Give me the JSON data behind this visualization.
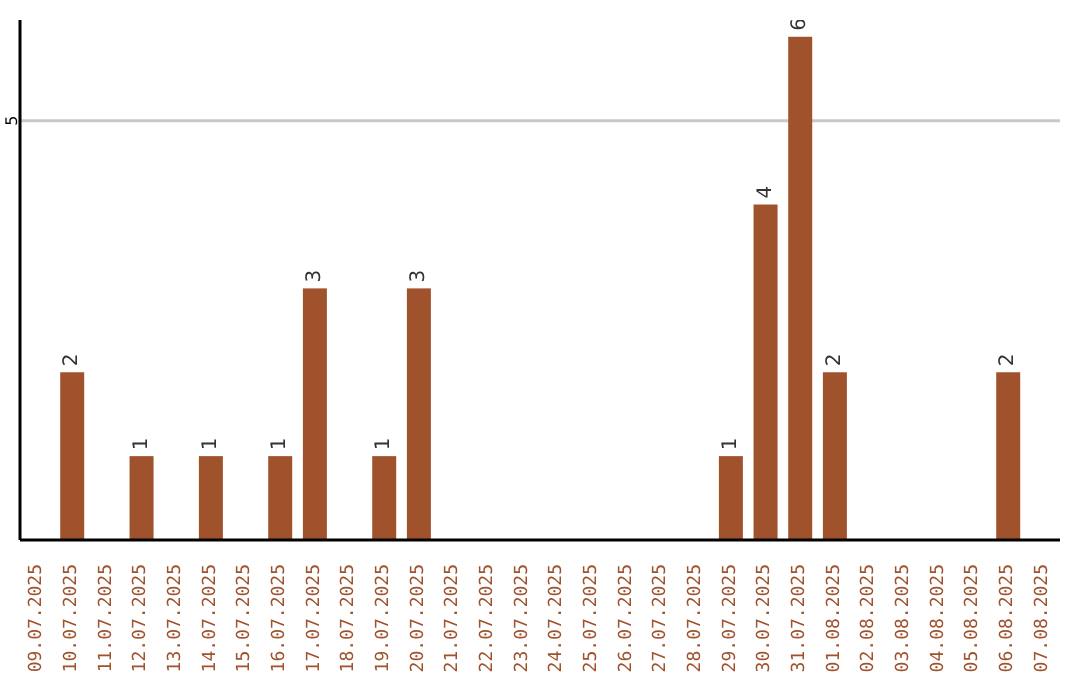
{
  "chart_data": {
    "type": "bar",
    "categories": [
      "09.07.2025",
      "10.07.2025",
      "11.07.2025",
      "12.07.2025",
      "13.07.2025",
      "14.07.2025",
      "15.07.2025",
      "16.07.2025",
      "17.07.2025",
      "18.07.2025",
      "19.07.2025",
      "20.07.2025",
      "21.07.2025",
      "22.07.2025",
      "23.07.2025",
      "24.07.2025",
      "25.07.2025",
      "26.07.2025",
      "27.07.2025",
      "28.07.2025",
      "29.07.2025",
      "30.07.2025",
      "31.07.2025",
      "01.08.2025",
      "02.08.2025",
      "03.08.2025",
      "04.08.2025",
      "05.08.2025",
      "06.08.2025",
      "07.08.2025"
    ],
    "values": [
      0,
      2,
      0,
      1,
      0,
      1,
      0,
      1,
      3,
      0,
      1,
      3,
      0,
      0,
      0,
      0,
      0,
      0,
      0,
      0,
      1,
      4,
      6,
      2,
      0,
      0,
      0,
      0,
      2,
      0
    ],
    "value_labels": [
      null,
      "2",
      null,
      "1",
      null,
      "1",
      null,
      "1",
      "3",
      null,
      "1",
      "3",
      null,
      null,
      null,
      null,
      null,
      null,
      null,
      null,
      "1",
      "4",
      "6",
      "2",
      null,
      null,
      null,
      null,
      "2",
      null
    ],
    "color": "#a0522d",
    "ylim": [
      0,
      6.2
    ],
    "yticks": [
      5
    ],
    "grid": "y"
  }
}
